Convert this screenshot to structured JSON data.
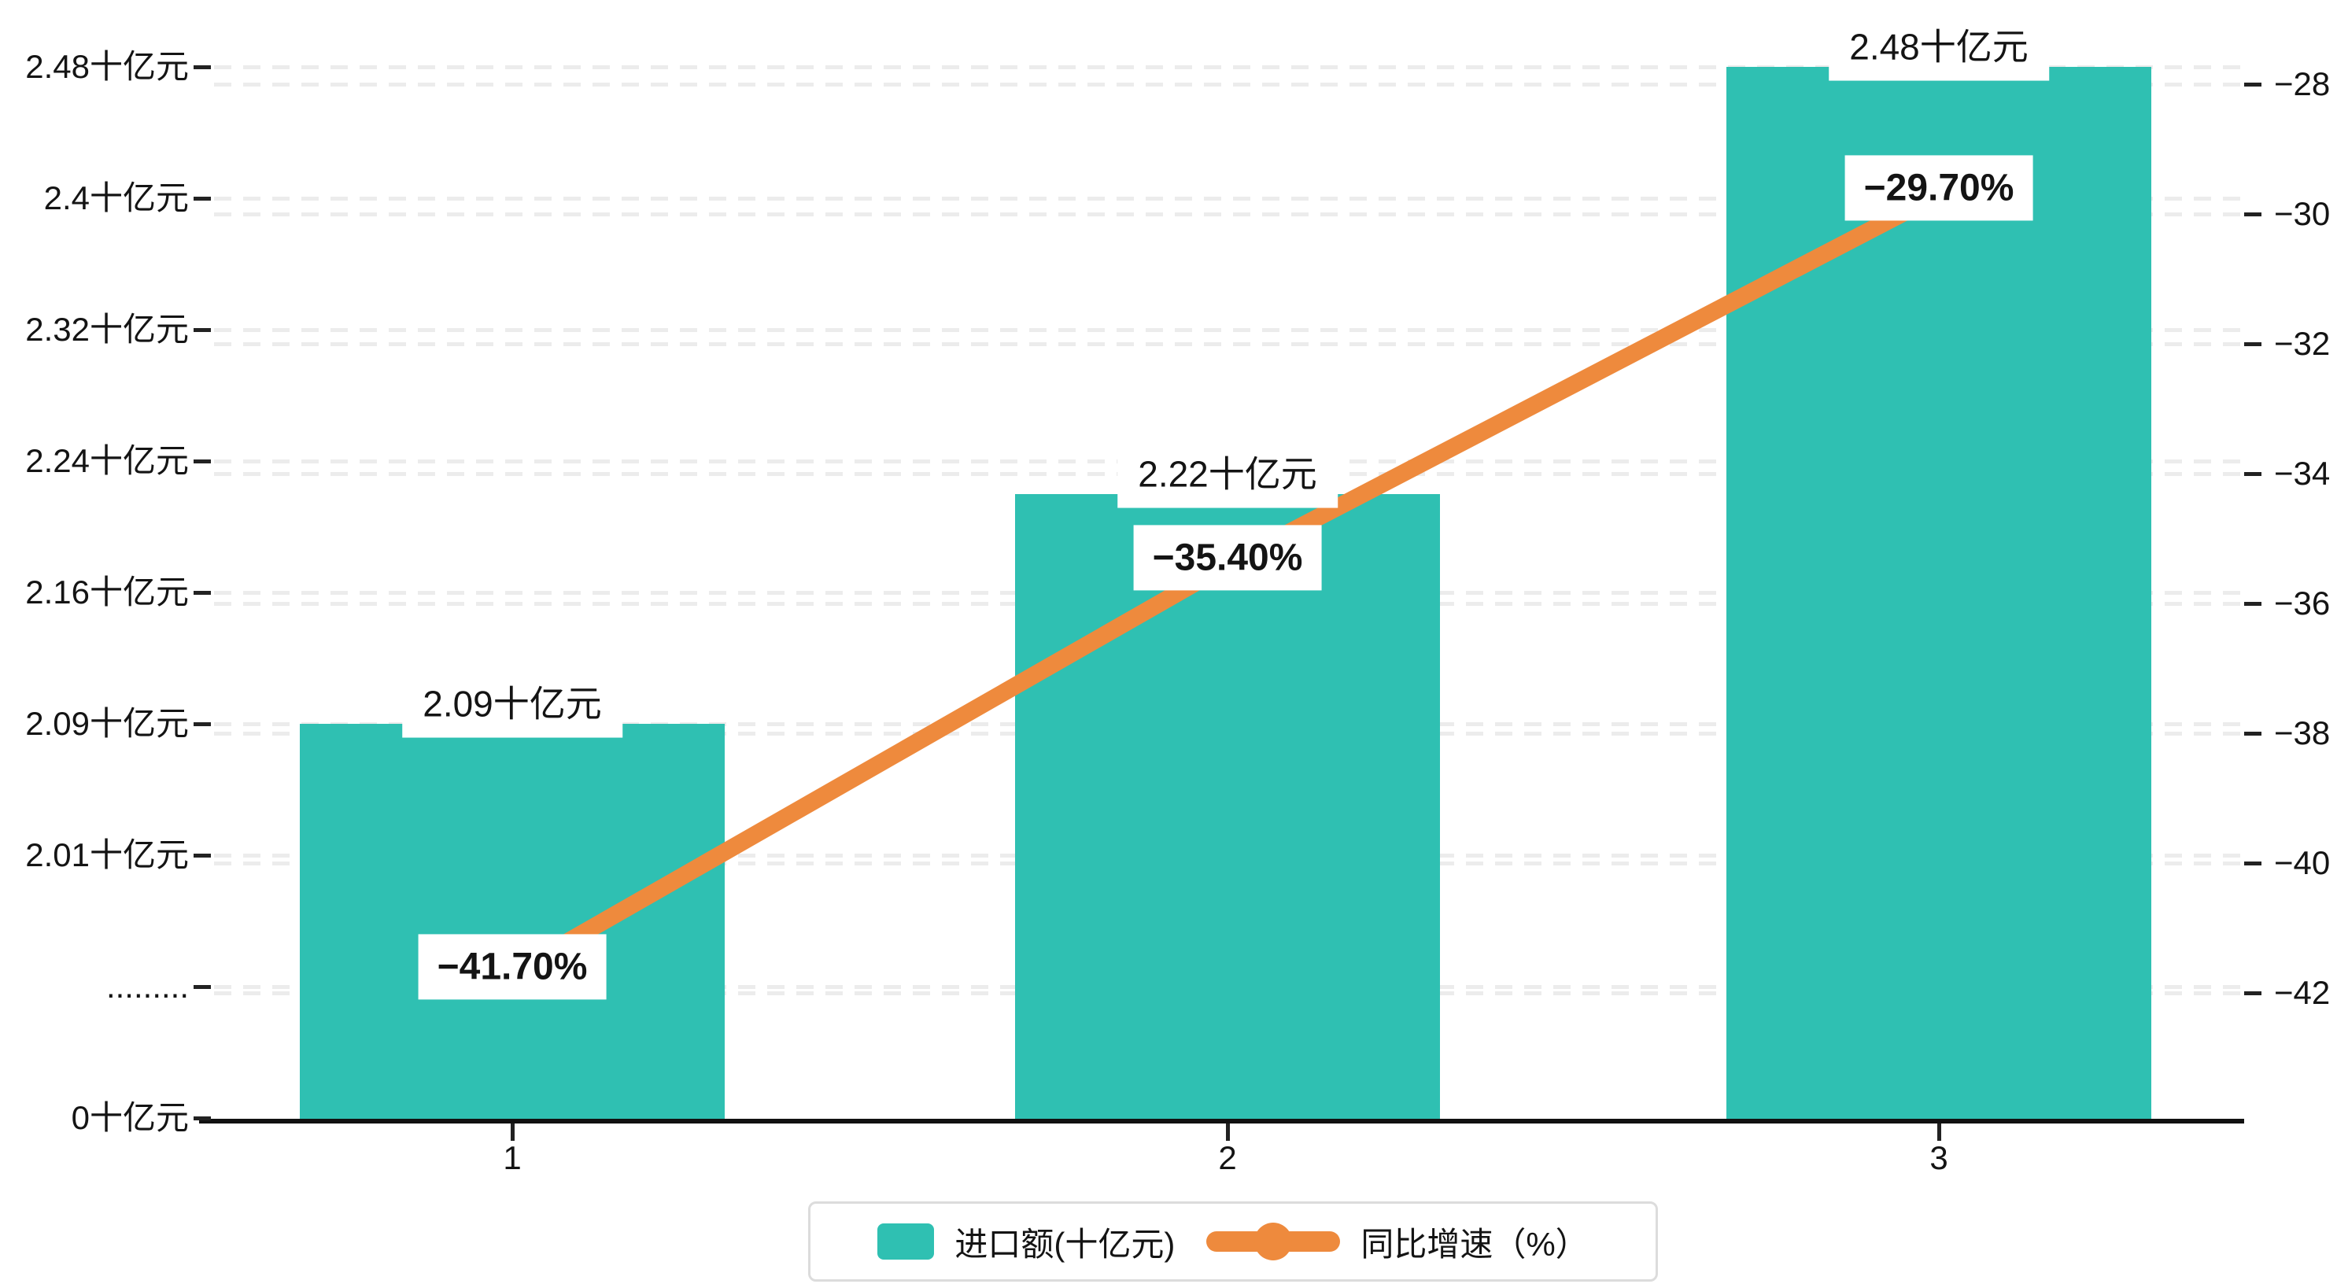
{
  "chart_data": {
    "type": "bar+line dual-axis",
    "categories": [
      "1",
      "2",
      "3"
    ],
    "series": [
      {
        "name": "进口额(十亿元)",
        "type": "bar",
        "values": [
          2.09,
          2.22,
          2.48
        ],
        "labels": [
          "2.09十亿元",
          "2.22十亿元",
          "2.48十亿元"
        ],
        "color": "#2FC0B2"
      },
      {
        "name": "同比增速（%）",
        "type": "line",
        "values": [
          -41.7,
          -35.4,
          -29.7
        ],
        "labels": [
          "−41.70%",
          "−35.40%",
          "−29.70%"
        ],
        "color": "#EE8A3D"
      }
    ],
    "left_axis": {
      "unit": "十亿元",
      "ticks": [
        {
          "label": "2.48十亿元",
          "value": 2.48
        },
        {
          "label": "2.4十亿元",
          "value": 2.4
        },
        {
          "label": "2.32十亿元",
          "value": 2.32
        },
        {
          "label": "2.24十亿元",
          "value": 2.24
        },
        {
          "label": "2.16十亿元",
          "value": 2.16
        },
        {
          "label": "2.09十亿元",
          "value": 2.09
        },
        {
          "label": "2.01十亿元",
          "value": 2.01
        },
        {
          "label": ".........",
          "value": null
        },
        {
          "label": "0十亿元",
          "value": 0
        }
      ]
    },
    "right_axis": {
      "unit": "%",
      "max": -28,
      "min": -42,
      "ticks": [
        "−28",
        "−30",
        "−32",
        "−34",
        "−36",
        "−38",
        "−40",
        "−42"
      ]
    },
    "legend": {
      "items": [
        {
          "label": "进口额(十亿元)",
          "color": "#2FC0B2",
          "marker": "bar-swatch"
        },
        {
          "label": "同比增速（%）",
          "color": "#EE8A3D",
          "marker": "line-dot"
        }
      ]
    },
    "grid": {
      "dashed": true,
      "color": "#ECECEC"
    }
  }
}
